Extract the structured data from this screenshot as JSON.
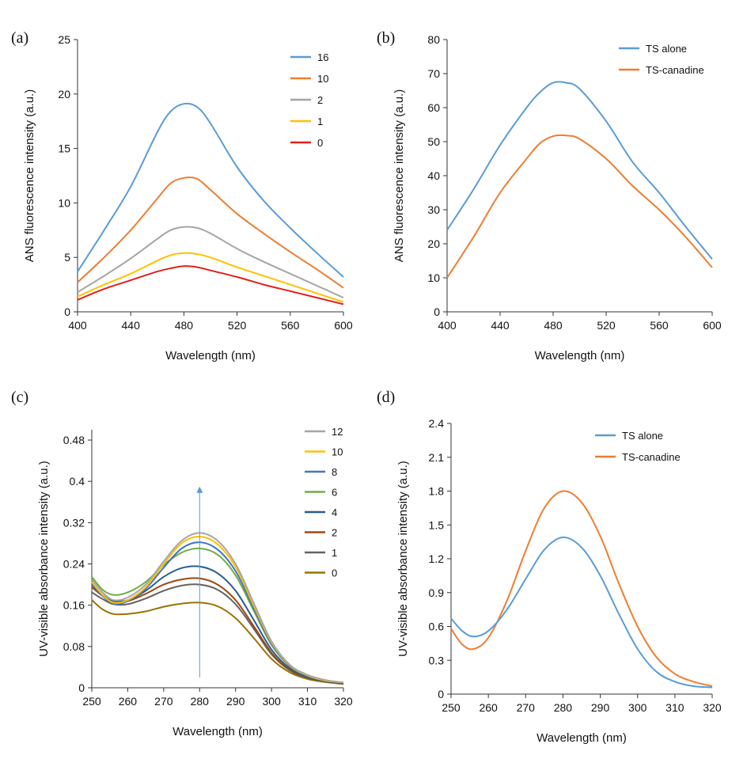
{
  "figure": {
    "chart_data": [
      {
        "id": "a",
        "panel_label": "(a)",
        "type": "line",
        "xlabel": "Wavelength (nm)",
        "ylabel": "ANS fluorescence intensity (a.u.)",
        "xlim": [
          400,
          600
        ],
        "ylim": [
          0,
          25
        ],
        "xticks": [
          400,
          440,
          480,
          520,
          560,
          600
        ],
        "xtick_labels": [
          "400",
          "440",
          "480",
          "520",
          "560",
          "600"
        ],
        "yticks": [
          0,
          5,
          10,
          15,
          20,
          25
        ],
        "ytick_labels": [
          "0",
          "5",
          "10",
          "15",
          "20",
          "25"
        ],
        "legend_position": "top-right",
        "x": [
          400,
          420,
          440,
          460,
          470,
          480,
          490,
          500,
          520,
          540,
          560,
          580,
          600
        ],
        "series": [
          {
            "name": "16",
            "color": "#5b9bd5",
            "values": [
              3.7,
              7.5,
              11.5,
              16.5,
              18.4,
              19.1,
              18.8,
              17.3,
              13.3,
              10.2,
              7.7,
              5.4,
              3.2
            ]
          },
          {
            "name": "10",
            "color": "#ed7d31",
            "values": [
              2.7,
              5.0,
              7.5,
              10.4,
              11.8,
              12.3,
              12.2,
              11.2,
              9.0,
              7.2,
              5.5,
              3.9,
              2.2
            ]
          },
          {
            "name": "2",
            "color": "#a5a5a5",
            "values": [
              1.8,
              3.3,
              4.9,
              6.7,
              7.5,
              7.8,
              7.7,
              7.2,
              5.8,
              4.6,
              3.5,
              2.4,
              1.3
            ]
          },
          {
            "name": "1",
            "color": "#ffc000",
            "values": [
              1.4,
              2.5,
              3.5,
              4.7,
              5.2,
              5.4,
              5.3,
              5.0,
              4.1,
              3.3,
              2.5,
              1.7,
              0.9
            ]
          },
          {
            "name": "0",
            "color": "#e0201b",
            "values": [
              1.1,
              2.1,
              2.9,
              3.7,
              4.0,
              4.2,
              4.1,
              3.8,
              3.2,
              2.5,
              1.9,
              1.3,
              0.7
            ]
          }
        ]
      },
      {
        "id": "b",
        "panel_label": "(b)",
        "type": "line",
        "xlabel": "Wavelength (nm)",
        "ylabel": "ANS fluorescence  intensity (a.u.)",
        "xlim": [
          400,
          600
        ],
        "ylim": [
          0,
          80
        ],
        "xticks": [
          400,
          440,
          480,
          520,
          560,
          600
        ],
        "xtick_labels": [
          "400",
          "440",
          "480",
          "520",
          "560",
          "600"
        ],
        "yticks": [
          0,
          10,
          20,
          30,
          40,
          50,
          60,
          70,
          80
        ],
        "ytick_labels": [
          "0",
          "10",
          "20",
          "30",
          "40",
          "50",
          "60",
          "70",
          "80"
        ],
        "legend_position": "top-right",
        "x": [
          400,
          420,
          440,
          460,
          470,
          480,
          490,
          500,
          520,
          540,
          560,
          580,
          600
        ],
        "series": [
          {
            "name": "TS alone",
            "color": "#5b9bd5",
            "values": [
              24,
              36,
              49,
              60,
              64.5,
              67.3,
              67.3,
              65.5,
              56,
              44,
              35,
              25,
              15.5
            ]
          },
          {
            "name": "TS-canadine",
            "color": "#ed7d31",
            "values": [
              10,
              22,
              35,
              45,
              49.5,
              51.6,
              51.8,
              50.8,
              45,
              37,
              30,
              22,
              13
            ]
          }
        ]
      },
      {
        "id": "c",
        "panel_label": "(c)",
        "type": "line",
        "xlabel": "Wavelength (nm)",
        "ylabel": "UV-visible absorbance intensity (a.u.)",
        "xlim": [
          250,
          320
        ],
        "ylim": [
          0,
          0.5
        ],
        "xticks": [
          250,
          260,
          270,
          280,
          290,
          300,
          310,
          320
        ],
        "xtick_labels": [
          "250",
          "260",
          "270",
          "280",
          "290",
          "300",
          "310",
          "320"
        ],
        "yticks": [
          0,
          0.08,
          0.16,
          0.24,
          0.32,
          0.4,
          0.48
        ],
        "ytick_labels": [
          "0",
          "0.08",
          "0.16",
          "0.24",
          "0.32",
          "0.4",
          "0.48"
        ],
        "legend_position": "top-right",
        "annotation": "upward arrow at 280 nm",
        "arrow": {
          "x": 280,
          "y_start": 0.02,
          "y_end": 0.39,
          "color": "#5b9bd5"
        },
        "x": [
          250,
          253,
          256,
          260,
          265,
          270,
          275,
          280,
          285,
          290,
          295,
          300,
          305,
          310,
          315,
          320
        ],
        "series": [
          {
            "name": "12",
            "color": "#a5a5a5",
            "values": [
              0.21,
              0.185,
              0.17,
              0.175,
              0.2,
              0.245,
              0.285,
              0.3,
              0.285,
              0.24,
              0.165,
              0.09,
              0.045,
              0.025,
              0.015,
              0.01
            ]
          },
          {
            "name": "10",
            "color": "#ffc000",
            "values": [
              0.205,
              0.18,
              0.165,
              0.17,
              0.195,
              0.24,
              0.28,
              0.293,
              0.278,
              0.234,
              0.16,
              0.088,
              0.044,
              0.024,
              0.014,
              0.01
            ]
          },
          {
            "name": "8",
            "color": "#4472c4",
            "values": [
              0.2,
              0.178,
              0.163,
              0.168,
              0.192,
              0.233,
              0.27,
              0.282,
              0.268,
              0.226,
              0.155,
              0.085,
              0.043,
              0.023,
              0.014,
              0.01
            ]
          },
          {
            "name": "6",
            "color": "#70ad47",
            "values": [
              0.215,
              0.19,
              0.18,
              0.185,
              0.205,
              0.238,
              0.262,
              0.27,
              0.258,
              0.218,
              0.15,
              0.083,
              0.042,
              0.023,
              0.014,
              0.01
            ]
          },
          {
            "name": "4",
            "color": "#255e91",
            "values": [
              0.2,
              0.18,
              0.168,
              0.17,
              0.188,
              0.215,
              0.232,
              0.235,
              0.222,
              0.188,
              0.132,
              0.074,
              0.038,
              0.021,
              0.013,
              0.009
            ]
          },
          {
            "name": "2",
            "color": "#9e480e",
            "values": [
              0.195,
              0.178,
              0.167,
              0.168,
              0.182,
              0.2,
              0.21,
              0.212,
              0.2,
              0.17,
              0.12,
              0.068,
              0.035,
              0.02,
              0.012,
              0.008
            ]
          },
          {
            "name": "1",
            "color": "#636363",
            "values": [
              0.185,
              0.172,
              0.162,
              0.162,
              0.173,
              0.188,
              0.198,
              0.2,
              0.19,
              0.162,
              0.115,
              0.065,
              0.034,
              0.019,
              0.012,
              0.008
            ]
          },
          {
            "name": "0",
            "color": "#997300",
            "values": [
              0.17,
              0.152,
              0.143,
              0.143,
              0.148,
              0.157,
              0.163,
              0.165,
              0.158,
              0.135,
              0.097,
              0.056,
              0.03,
              0.017,
              0.011,
              0.007
            ]
          }
        ]
      },
      {
        "id": "d",
        "panel_label": "(d)",
        "type": "line",
        "xlabel": "Wavelength (nm)",
        "ylabel": "UV-visible absorbance intensity (a.u.)",
        "xlim": [
          250,
          320
        ],
        "ylim": [
          0,
          2.4
        ],
        "xticks": [
          250,
          260,
          270,
          280,
          290,
          300,
          310,
          320
        ],
        "xtick_labels": [
          "250",
          "260",
          "270",
          "280",
          "290",
          "300",
          "310",
          "320"
        ],
        "yticks": [
          0,
          0.3,
          0.6,
          0.9,
          1.2,
          1.5,
          1.8,
          2.1,
          2.4
        ],
        "ytick_labels": [
          "0",
          "0.3",
          "0.6",
          "0.9",
          "1.2",
          "1.5",
          "1.8",
          "2.1",
          "2.4"
        ],
        "legend_position": "top-right",
        "x": [
          250,
          253,
          256,
          260,
          265,
          270,
          275,
          280,
          285,
          290,
          295,
          300,
          305,
          310,
          315,
          320
        ],
        "series": [
          {
            "name": "TS alone",
            "color": "#5b9bd5",
            "values": [
              0.67,
              0.56,
              0.51,
              0.56,
              0.75,
              1.02,
              1.28,
              1.39,
              1.3,
              1.05,
              0.71,
              0.4,
              0.2,
              0.11,
              0.07,
              0.06
            ]
          },
          {
            "name": "TS-canadine",
            "color": "#ed7d31",
            "values": [
              0.58,
              0.44,
              0.4,
              0.5,
              0.83,
              1.27,
              1.65,
              1.8,
              1.7,
              1.4,
              0.98,
              0.6,
              0.33,
              0.18,
              0.11,
              0.07
            ]
          }
        ]
      }
    ]
  }
}
